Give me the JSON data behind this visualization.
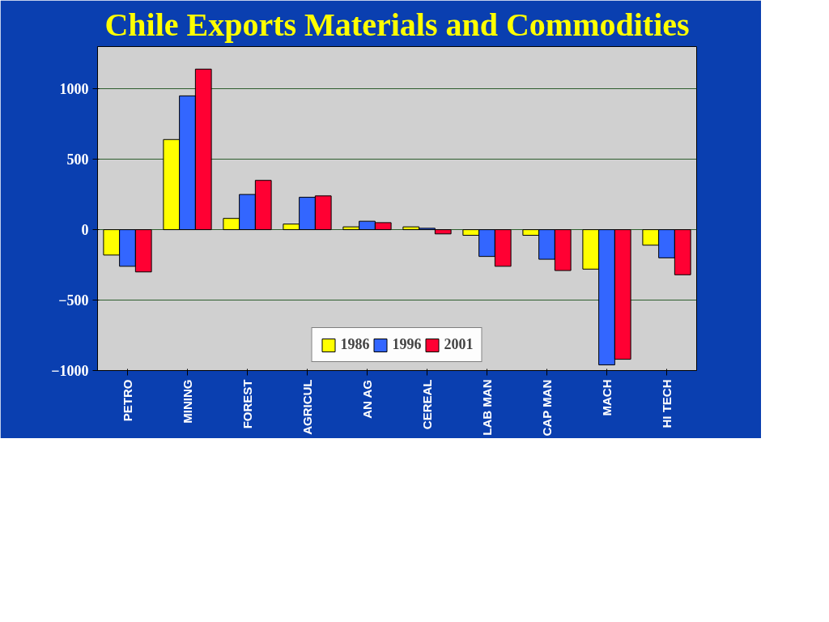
{
  "chart_data": {
    "type": "bar",
    "title": "Chile Exports Materials and Commodities",
    "categories": [
      "PETRO",
      "MINING",
      "FOREST",
      "AGRICUL",
      "AN AG",
      "CEREAL",
      "LAB MAN",
      "CAP MAN",
      "MACH",
      "HI TECH"
    ],
    "series": [
      {
        "name": "1986",
        "color": "#ffff00",
        "values": [
          -180,
          640,
          80,
          40,
          20,
          20,
          -40,
          -40,
          -280,
          -110
        ]
      },
      {
        "name": "1996",
        "color": "#3366ff",
        "values": [
          -260,
          950,
          250,
          230,
          60,
          10,
          -190,
          -210,
          -960,
          -200
        ]
      },
      {
        "name": "2001",
        "color": "#ff0033",
        "values": [
          -300,
          1140,
          350,
          240,
          50,
          -30,
          -260,
          -290,
          -920,
          -320
        ]
      }
    ],
    "ylim": [
      -1000,
      1300
    ],
    "yticks": [
      -1000,
      -500,
      0,
      500,
      1000
    ],
    "grid": "y",
    "legend": "bottom"
  }
}
